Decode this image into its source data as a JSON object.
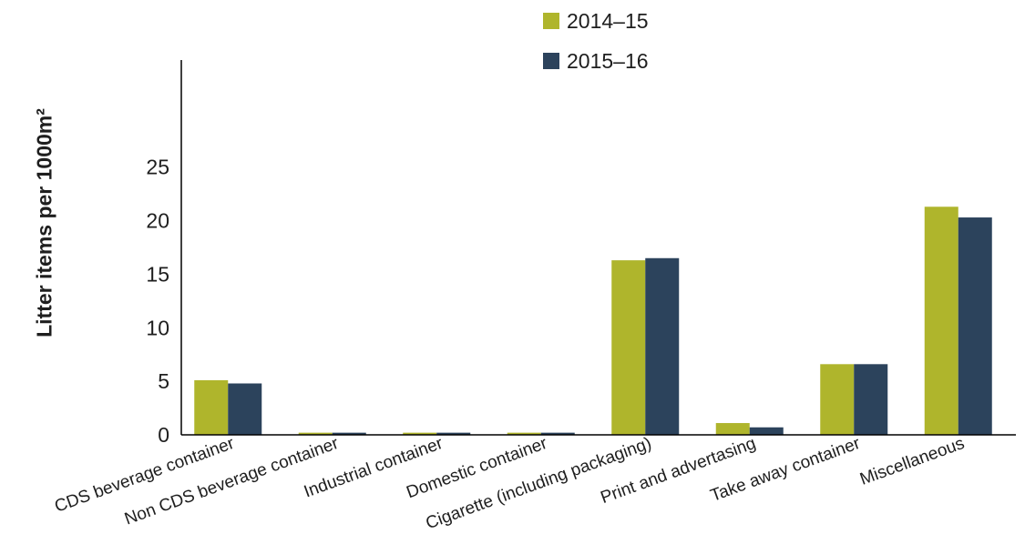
{
  "chart_data": {
    "type": "bar",
    "title": "",
    "xlabel": "",
    "ylabel": "Litter items per 1000m²",
    "ylim": [
      0,
      35
    ],
    "yticks": [
      0,
      5,
      10,
      15,
      20,
      25
    ],
    "grid": false,
    "legend_position": "top",
    "categories": [
      "CDS beverage container",
      "Non CDS beverage container",
      "Industrial container",
      "Domestic container",
      "Cigarette (including packaging)",
      "Print and advertasing",
      "Take away container",
      "Miscellaneous"
    ],
    "series": [
      {
        "name": "2014–15",
        "color": "#afb52c",
        "values": [
          5.1,
          0.2,
          0.2,
          0.2,
          16.3,
          1.1,
          6.6,
          21.3
        ]
      },
      {
        "name": "2015–16",
        "color": "#2c435c",
        "values": [
          4.8,
          0.2,
          0.2,
          0.2,
          16.5,
          0.7,
          6.6,
          20.3
        ]
      }
    ]
  }
}
